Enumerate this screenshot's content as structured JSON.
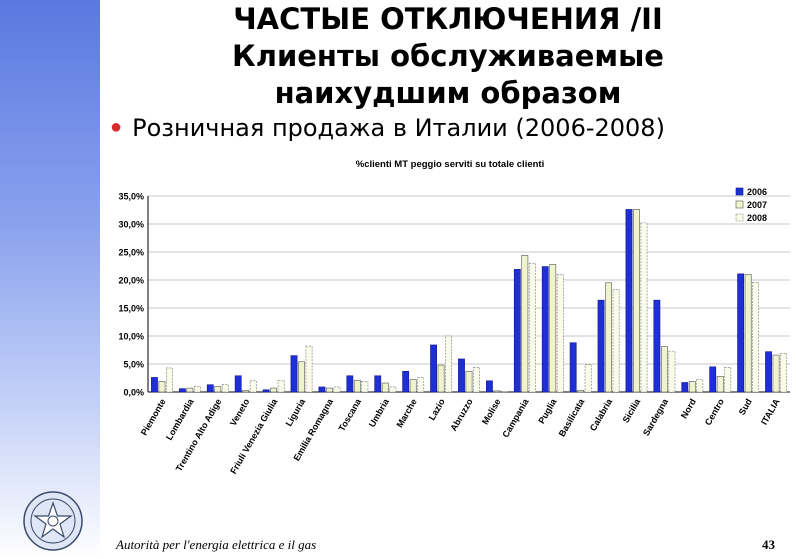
{
  "title": {
    "line1": "ЧАСТЫЕ ОТКЛЮЧЕНИЯ /II",
    "line2": "Клиенты обслуживаемые",
    "line3": "наихудшим образом"
  },
  "bullet": "Розничная продажа в Италии (2006-2008)",
  "footer": {
    "text": "Autorità per l'energia elettrica e il gas",
    "page": "43"
  },
  "colors": {
    "s2006": "#1e2fd6",
    "s2007": "#f0f4cc",
    "s2008": "#fbfbea",
    "sidebar": "#6f8ce8",
    "bullet": "#d92b2b"
  },
  "chart_data": {
    "type": "bar",
    "title": "%clienti MT peggio serviti su totale clienti",
    "categories": [
      "Piemonte",
      "Lombardia",
      "Trentino Alto Adige",
      "Veneto",
      "Friuli Venezia Giulia",
      "Liguria",
      "Emilia Romagna",
      "Toscana",
      "Umbria",
      "Marche",
      "Lazio",
      "Abruzzo",
      "Molise",
      "Campania",
      "Puglia",
      "Basilicata",
      "Calabria",
      "Sicilia",
      "Sardegna",
      "Nord",
      "Centro",
      "Sud",
      "ITALIA"
    ],
    "series": [
      {
        "name": "2006",
        "values": [
          2.6,
          0.6,
          1.3,
          2.9,
          0.4,
          6.5,
          0.9,
          2.9,
          2.9,
          3.7,
          8.4,
          5.9,
          2.0,
          21.9,
          22.4,
          8.8,
          16.4,
          32.6,
          16.4,
          1.7,
          4.5,
          21.1,
          7.2
        ]
      },
      {
        "name": "2007",
        "values": [
          1.9,
          0.7,
          1.0,
          0.3,
          0.7,
          5.4,
          0.7,
          2.1,
          1.6,
          2.2,
          4.8,
          3.7,
          0.2,
          24.4,
          22.8,
          0.3,
          19.5,
          32.6,
          8.1,
          1.9,
          2.8,
          21.0,
          6.6
        ]
      },
      {
        "name": "2008",
        "values": [
          4.3,
          1.0,
          1.3,
          2.0,
          2.1,
          8.2,
          0.9,
          1.9,
          0.9,
          2.6,
          10.0,
          4.4,
          0.1,
          23.0,
          21.0,
          4.9,
          18.3,
          30.2,
          7.3,
          2.2,
          4.4,
          19.6,
          6.9
        ]
      }
    ],
    "yticks": [
      "0,0%",
      "5,0%",
      "10,0%",
      "15,0%",
      "20,0%",
      "25,0%",
      "30,0%",
      "35,0%"
    ],
    "ylim": [
      0,
      35
    ],
    "grid": true,
    "legend": "top-right"
  }
}
